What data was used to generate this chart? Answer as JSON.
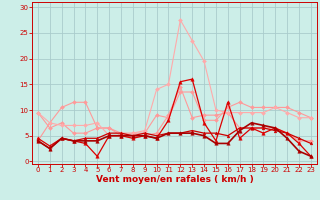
{
  "background_color": "#cceee8",
  "grid_color": "#aacccc",
  "xlabel": "Vent moyen/en rafales ( km/h )",
  "xlabel_color": "#cc0000",
  "xlabel_fontsize": 6.5,
  "xticks": [
    0,
    1,
    2,
    3,
    4,
    5,
    6,
    7,
    8,
    9,
    10,
    11,
    12,
    13,
    14,
    15,
    16,
    17,
    18,
    19,
    20,
    21,
    22,
    23
  ],
  "yticks": [
    0,
    5,
    10,
    15,
    20,
    25,
    30
  ],
  "ylim": [
    -0.5,
    31
  ],
  "xlim": [
    -0.5,
    23.5
  ],
  "tick_color": "#cc0000",
  "tick_fontsize": 5.0,
  "series": [
    {
      "y": [
        9.5,
        6.5,
        7.5,
        5.5,
        5.5,
        6.5,
        6.5,
        5.5,
        5.5,
        5.5,
        9.0,
        8.5,
        13.5,
        13.5,
        8.0,
        8.0,
        10.5,
        11.5,
        10.5,
        10.5,
        10.5,
        10.5,
        9.5,
        8.5
      ],
      "color": "#ff9999",
      "lw": 0.8,
      "marker": "D",
      "markersize": 2.0,
      "zorder": 2
    },
    {
      "y": [
        4.0,
        7.5,
        10.5,
        11.5,
        11.5,
        6.5,
        6.5,
        5.0,
        5.0,
        5.0,
        5.5,
        9.0,
        14.5,
        8.5,
        9.0,
        9.0,
        9.5,
        6.5,
        6.5,
        6.5,
        6.5,
        5.5,
        4.0,
        4.0
      ],
      "color": "#ff9999",
      "lw": 0.8,
      "marker": "D",
      "markersize": 2.0,
      "zorder": 2
    },
    {
      "y": [
        9.5,
        7.5,
        7.0,
        7.0,
        7.0,
        7.5,
        5.0,
        5.0,
        5.5,
        6.0,
        14.0,
        15.0,
        27.5,
        23.5,
        19.5,
        10.0,
        9.5,
        9.5,
        9.5,
        9.5,
        10.5,
        9.5,
        8.5,
        8.5
      ],
      "color": "#ffaaaa",
      "lw": 0.8,
      "marker": "D",
      "markersize": 2.0,
      "zorder": 2
    },
    {
      "y": [
        4.5,
        3.0,
        4.5,
        4.0,
        3.5,
        1.0,
        5.0,
        5.0,
        4.5,
        5.0,
        4.5,
        8.0,
        15.5,
        16.0,
        7.5,
        4.0,
        11.5,
        4.5,
        6.5,
        5.5,
        6.5,
        5.5,
        3.5,
        1.0
      ],
      "color": "#dd0000",
      "lw": 0.9,
      "marker": "^",
      "markersize": 2.5,
      "zorder": 3
    },
    {
      "y": [
        4.0,
        2.5,
        4.5,
        4.0,
        4.5,
        4.5,
        5.5,
        5.5,
        5.0,
        5.5,
        5.0,
        5.5,
        5.5,
        6.0,
        5.5,
        5.5,
        5.0,
        6.5,
        6.5,
        6.5,
        6.0,
        5.5,
        4.5,
        3.5
      ],
      "color": "#cc0000",
      "lw": 0.9,
      "marker": "^",
      "markersize": 2.0,
      "zorder": 3
    },
    {
      "y": [
        4.0,
        2.5,
        4.5,
        4.0,
        4.0,
        4.0,
        5.0,
        5.0,
        5.0,
        5.0,
        4.5,
        5.5,
        5.5,
        5.5,
        5.0,
        3.5,
        3.5,
        6.0,
        7.5,
        7.0,
        6.5,
        4.5,
        2.0,
        1.0
      ],
      "color": "#aa0000",
      "lw": 1.2,
      "marker": "^",
      "markersize": 2.5,
      "zorder": 4
    }
  ]
}
